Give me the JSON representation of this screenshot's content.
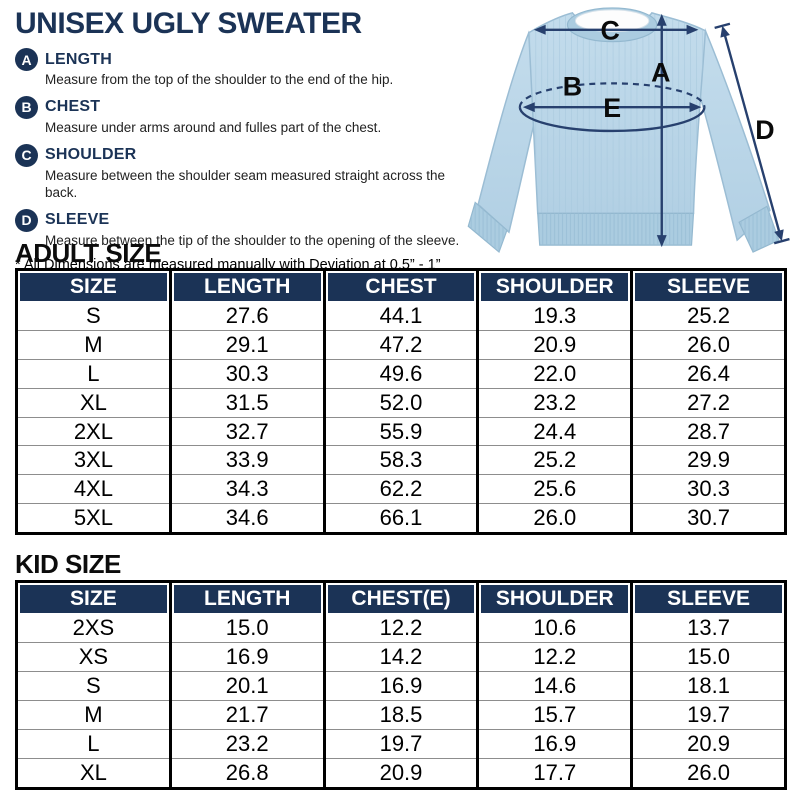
{
  "page": {
    "title": "UNISEX UGLY SWEATER",
    "note": "* All Dimensions are measured manually with Deviation at 0.5” - 1”"
  },
  "measurements": [
    {
      "letter": "A",
      "name": "LENGTH",
      "description": "Measure from the top of the shoulder to the end of the hip."
    },
    {
      "letter": "B",
      "name": "CHEST",
      "description": "Measure under arms around and fulles part of the chest."
    },
    {
      "letter": "C",
      "name": "SHOULDER",
      "description": "Measure between the shoulder seam measured straight across the back."
    },
    {
      "letter": "D",
      "name": "SLEEVE",
      "description": "Measure between the tip of the shoulder to the opening of the sleeve."
    }
  ],
  "diagram": {
    "label_a": "A",
    "label_b": "B",
    "label_c": "C",
    "label_d": "D",
    "label_e": "E"
  },
  "adult_table": {
    "heading": "ADULT SIZE",
    "columns": [
      "SIZE",
      "LENGTH",
      "CHEST",
      "SHOULDER",
      "SLEEVE"
    ],
    "rows": [
      [
        "S",
        "27.6",
        "44.1",
        "19.3",
        "25.2"
      ],
      [
        "M",
        "29.1",
        "47.2",
        "20.9",
        "26.0"
      ],
      [
        "L",
        "30.3",
        "49.6",
        "22.0",
        "26.4"
      ],
      [
        "XL",
        "31.5",
        "52.0",
        "23.2",
        "27.2"
      ],
      [
        "2XL",
        "32.7",
        "55.9",
        "24.4",
        "28.7"
      ],
      [
        "3XL",
        "33.9",
        "58.3",
        "25.2",
        "29.9"
      ],
      [
        "4XL",
        "34.3",
        "62.2",
        "25.6",
        "30.3"
      ],
      [
        "5XL",
        "34.6",
        "66.1",
        "26.0",
        "30.7"
      ]
    ]
  },
  "kid_table": {
    "heading": "KID SIZE",
    "columns": [
      "SIZE",
      "LENGTH",
      "CHEST(E)",
      "SHOULDER",
      "SLEEVE"
    ],
    "rows": [
      [
        "2XS",
        "15.0",
        "12.2",
        "10.6",
        "13.7"
      ],
      [
        "XS",
        "16.9",
        "14.2",
        "12.2",
        "15.0"
      ],
      [
        "S",
        "20.1",
        "16.9",
        "14.6",
        "18.1"
      ],
      [
        "M",
        "21.7",
        "18.5",
        "15.7",
        "19.7"
      ],
      [
        "L",
        "23.2",
        "19.7",
        "16.9",
        "20.9"
      ],
      [
        "XL",
        "26.8",
        "20.9",
        "17.7",
        "26.0"
      ]
    ]
  },
  "colors": {
    "navy": "#1b3356",
    "arrow_blue": "#27406e",
    "sweater_blue": "#b8d4e8",
    "table_border": "#000000",
    "row_divider": "#8d8d8d"
  }
}
